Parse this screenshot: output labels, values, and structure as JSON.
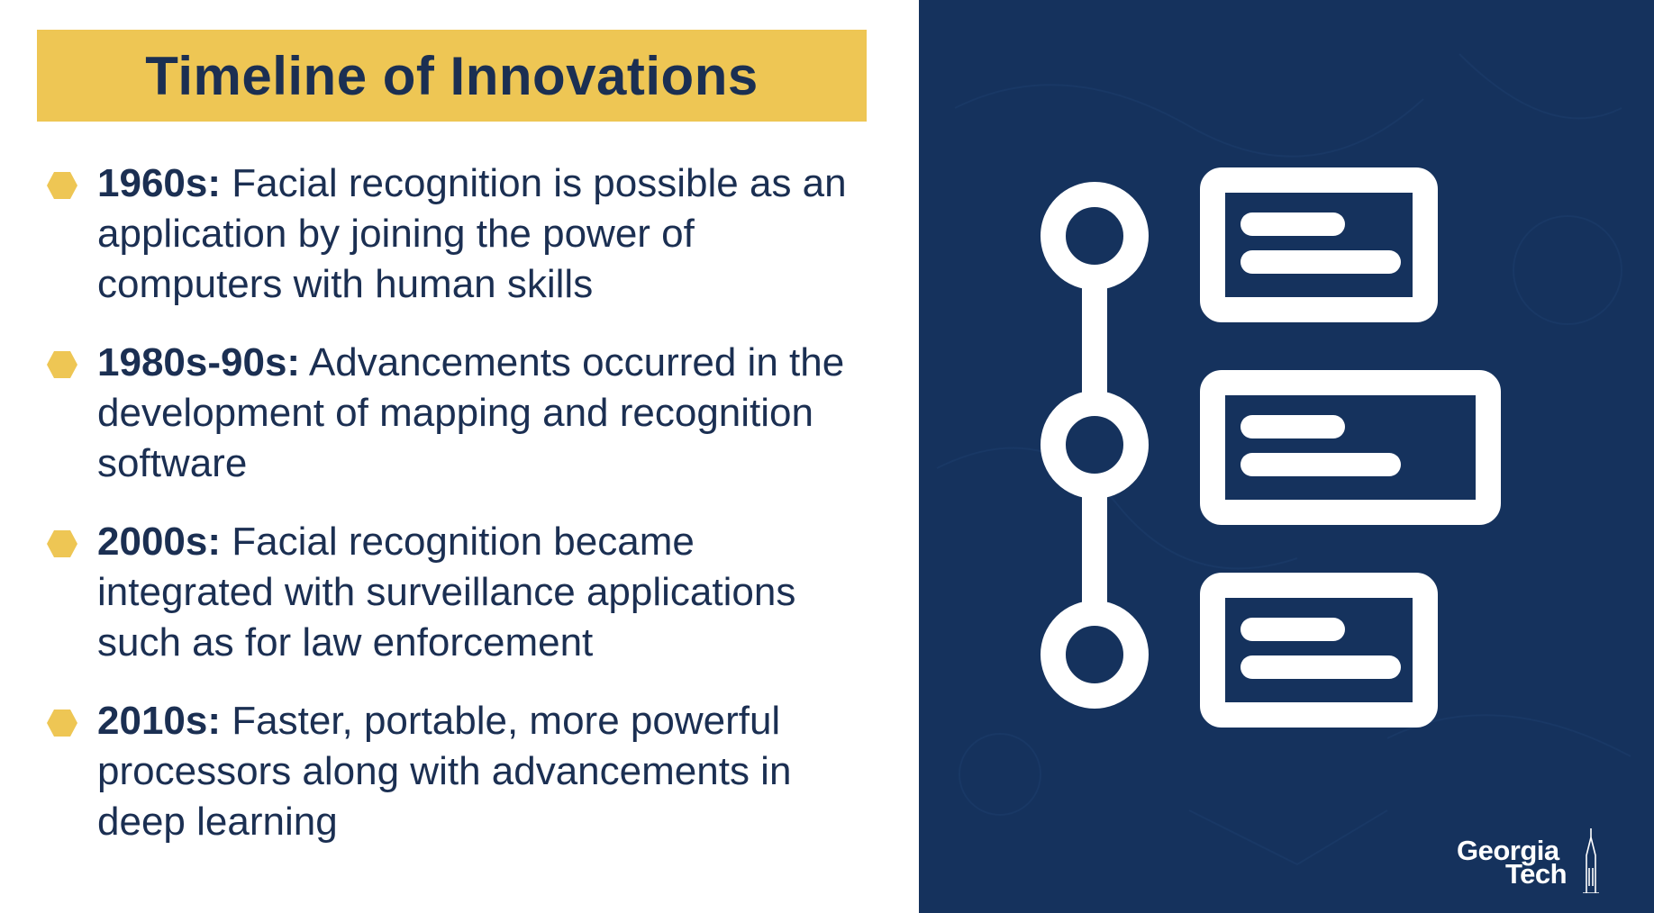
{
  "slide": {
    "title": "Timeline of Innovations",
    "bullets": [
      {
        "year": "1960s:",
        "text": " Facial recognition is possible as an application by joining the power of computers with human skills"
      },
      {
        "year": "1980s-90s:",
        "text": " Advancements occurred in the development of mapping and recognition software"
      },
      {
        "year": "2000s:",
        "text": " Facial recognition became integrated with surveillance applications such as for law enforcement"
      },
      {
        "year": "2010s:",
        "text": " Faster, portable, more powerful processors along with advancements in deep learning"
      }
    ]
  },
  "logo": {
    "line1": "Georgia",
    "line2": "Tech"
  },
  "icons": {
    "bullet": "hexagon-bullet-icon",
    "graphic": "timeline-icon",
    "logo_mark": "tech-tower-icon"
  },
  "colors": {
    "title_bar": "#eec654",
    "title_text": "#1b2f52",
    "body_text": "#1b2f52",
    "bullet": "#eec654",
    "right_panel": "#15325d",
    "graphic": "#ffffff"
  }
}
